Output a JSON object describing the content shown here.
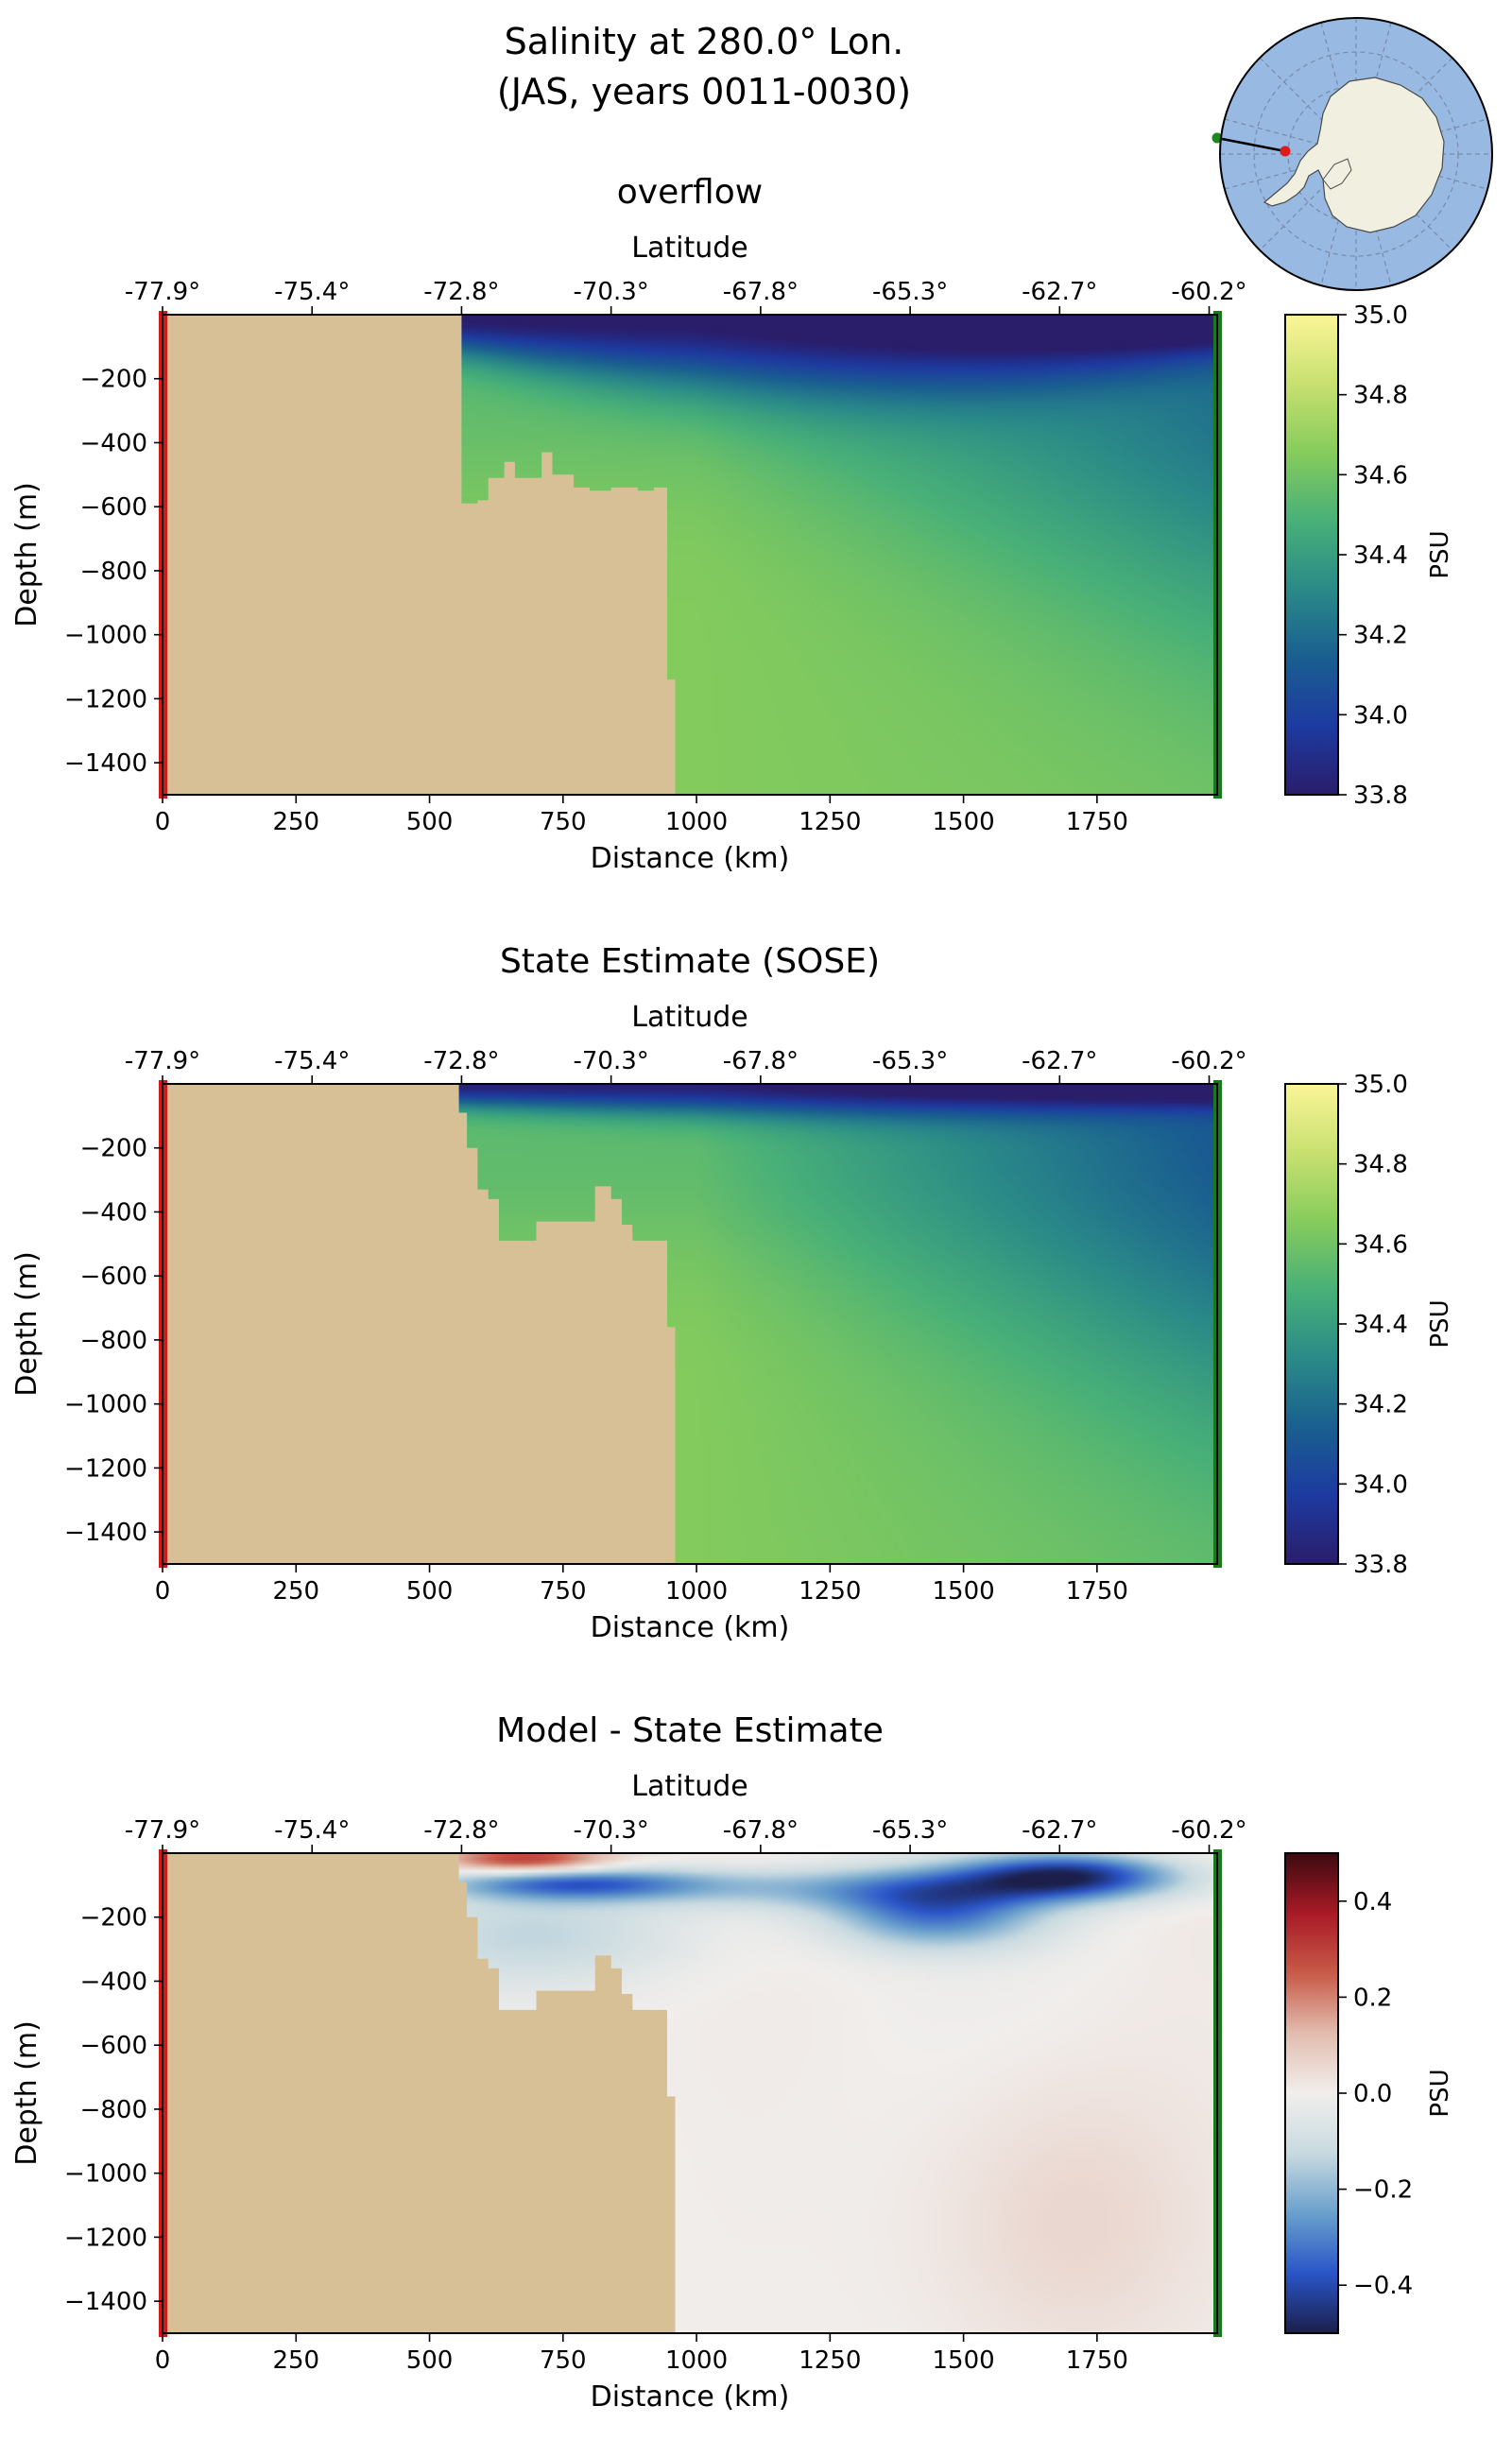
{
  "figure": {
    "title_line1": "Salinity at 280.0° Lon.",
    "title_line2": "(JAS, years 0011-0030)"
  },
  "colors": {
    "land": "#d8c096",
    "start_marker": "#d11a1a",
    "end_marker": "#1a7a1a",
    "map_ocean": "#98b9e2",
    "map_land": "#f0efe0",
    "map_grid": "#7a8aa8"
  },
  "inset_map": {
    "projection": "south-polar-stereographic",
    "start_point_color": "#d11a1a",
    "end_point_color": "#1a7a1a"
  },
  "chart_data": [
    {
      "type": "heatmap",
      "title": "overflow",
      "top_axis_label": "Latitude",
      "top_ticks": [
        "-77.9°",
        "-75.4°",
        "-72.8°",
        "-70.3°",
        "-67.8°",
        "-65.3°",
        "-62.7°",
        "-60.2°"
      ],
      "top_tick_positions_km": [
        0,
        280,
        560,
        840,
        1120,
        1400,
        1680,
        1960
      ],
      "xlabel": "Distance (km)",
      "ylabel": "Depth (m)",
      "x_ticks": [
        0,
        250,
        500,
        750,
        1000,
        1250,
        1500,
        1750
      ],
      "y_ticks": [
        -200,
        -400,
        -600,
        -800,
        -1000,
        -1200,
        -1400
      ],
      "y_tick_labels": [
        "−200",
        "−400",
        "−600",
        "−800",
        "−1000",
        "−1200",
        "−1400"
      ],
      "xlim": [
        0,
        1975
      ],
      "ylim": [
        -1500,
        0
      ],
      "colormap": "haline",
      "colorbar": {
        "label": "PSU",
        "range": [
          33.8,
          35.0
        ],
        "ticks": [
          33.8,
          34.0,
          34.2,
          34.4,
          34.6,
          34.8,
          35.0
        ],
        "tick_labels": [
          "33.8",
          "34.0",
          "34.2",
          "34.4",
          "34.6",
          "34.8",
          "35.0"
        ],
        "stops": [
          "#2a1d6a",
          "#1d3aa0",
          "#1a5f90",
          "#2a8a88",
          "#48b078",
          "#86cc5c",
          "#c8e070",
          "#fbf598"
        ]
      },
      "bathymetry_km_m": [
        [
          0,
          0
        ],
        [
          560,
          0
        ],
        [
          560,
          -590
        ],
        [
          590,
          -590
        ],
        [
          590,
          -580
        ],
        [
          610,
          -580
        ],
        [
          610,
          -510
        ],
        [
          640,
          -510
        ],
        [
          640,
          -460
        ],
        [
          660,
          -460
        ],
        [
          660,
          -510
        ],
        [
          710,
          -510
        ],
        [
          710,
          -430
        ],
        [
          730,
          -430
        ],
        [
          730,
          -500
        ],
        [
          770,
          -500
        ],
        [
          770,
          -540
        ],
        [
          800,
          -540
        ],
        [
          800,
          -550
        ],
        [
          840,
          -550
        ],
        [
          840,
          -540
        ],
        [
          890,
          -540
        ],
        [
          890,
          -550
        ],
        [
          920,
          -550
        ],
        [
          920,
          -540
        ],
        [
          945,
          -540
        ],
        [
          945,
          -1140
        ],
        [
          960,
          -1140
        ],
        [
          960,
          -1500
        ],
        [
          0,
          -1500
        ]
      ],
      "surface_fresh_layer_m": 120,
      "surface_salinity_psu": 33.85,
      "deep_salinity_psu": 34.65,
      "offshore_deep_salinity_psu": 34.55
    },
    {
      "type": "heatmap",
      "title": "State Estimate (SOSE)",
      "top_axis_label": "Latitude",
      "top_ticks": [
        "-77.9°",
        "-75.4°",
        "-72.8°",
        "-70.3°",
        "-67.8°",
        "-65.3°",
        "-62.7°",
        "-60.2°"
      ],
      "top_tick_positions_km": [
        0,
        280,
        560,
        840,
        1120,
        1400,
        1680,
        1960
      ],
      "xlabel": "Distance (km)",
      "ylabel": "Depth (m)",
      "x_ticks": [
        0,
        250,
        500,
        750,
        1000,
        1250,
        1500,
        1750
      ],
      "y_ticks": [
        -200,
        -400,
        -600,
        -800,
        -1000,
        -1200,
        -1400
      ],
      "y_tick_labels": [
        "−200",
        "−400",
        "−600",
        "−800",
        "−1000",
        "−1200",
        "−1400"
      ],
      "xlim": [
        0,
        1975
      ],
      "ylim": [
        -1500,
        0
      ],
      "colormap": "haline",
      "colorbar": {
        "label": "PSU",
        "range": [
          33.8,
          35.0
        ],
        "ticks": [
          33.8,
          34.0,
          34.2,
          34.4,
          34.6,
          34.8,
          35.0
        ],
        "tick_labels": [
          "33.8",
          "34.0",
          "34.2",
          "34.4",
          "34.6",
          "34.8",
          "35.0"
        ],
        "stops": [
          "#2a1d6a",
          "#1d3aa0",
          "#1a5f90",
          "#2a8a88",
          "#48b078",
          "#86cc5c",
          "#c8e070",
          "#fbf598"
        ]
      },
      "bathymetry_km_m": [
        [
          0,
          0
        ],
        [
          555,
          0
        ],
        [
          555,
          -90
        ],
        [
          570,
          -90
        ],
        [
          570,
          -200
        ],
        [
          590,
          -200
        ],
        [
          590,
          -330
        ],
        [
          610,
          -330
        ],
        [
          610,
          -360
        ],
        [
          630,
          -360
        ],
        [
          630,
          -490
        ],
        [
          700,
          -490
        ],
        [
          700,
          -430
        ],
        [
          810,
          -430
        ],
        [
          810,
          -320
        ],
        [
          840,
          -320
        ],
        [
          840,
          -360
        ],
        [
          860,
          -360
        ],
        [
          860,
          -440
        ],
        [
          880,
          -440
        ],
        [
          880,
          -490
        ],
        [
          945,
          -490
        ],
        [
          945,
          -760
        ],
        [
          960,
          -760
        ],
        [
          960,
          -1500
        ],
        [
          0,
          -1500
        ]
      ],
      "surface_fresh_layer_m": 70,
      "surface_salinity_psu": 33.9,
      "deep_salinity_psu": 34.65,
      "offshore_deep_salinity_psu": 34.45
    },
    {
      "type": "heatmap",
      "title": "Model - State Estimate",
      "top_axis_label": "Latitude",
      "top_ticks": [
        "-77.9°",
        "-75.4°",
        "-72.8°",
        "-70.3°",
        "-67.8°",
        "-65.3°",
        "-62.7°",
        "-60.2°"
      ],
      "top_tick_positions_km": [
        0,
        280,
        560,
        840,
        1120,
        1400,
        1680,
        1960
      ],
      "xlabel": "Distance (km)",
      "ylabel": "Depth (m)",
      "x_ticks": [
        0,
        250,
        500,
        750,
        1000,
        1250,
        1500,
        1750
      ],
      "y_ticks": [
        -200,
        -400,
        -600,
        -800,
        -1000,
        -1200,
        -1400
      ],
      "y_tick_labels": [
        "−200",
        "−400",
        "−600",
        "−800",
        "−1000",
        "−1200",
        "−1400"
      ],
      "xlim": [
        0,
        1975
      ],
      "ylim": [
        -1500,
        0
      ],
      "colormap": "balance",
      "colorbar": {
        "label": "PSU",
        "range": [
          -0.5,
          0.5
        ],
        "ticks": [
          -0.4,
          -0.2,
          0.0,
          0.2,
          0.4
        ],
        "tick_labels": [
          "−0.4",
          "−0.2",
          "0.0",
          "0.2",
          "0.4"
        ],
        "stops": [
          "#1b1f4a",
          "#2a55c8",
          "#6aa0cc",
          "#c8dae0",
          "#f1eeec",
          "#e2bcae",
          "#c85a48",
          "#a81a26",
          "#3c0a10"
        ]
      },
      "bathymetry_km_m": [
        [
          0,
          0
        ],
        [
          555,
          0
        ],
        [
          555,
          -90
        ],
        [
          570,
          -90
        ],
        [
          570,
          -200
        ],
        [
          590,
          -200
        ],
        [
          590,
          -330
        ],
        [
          610,
          -330
        ],
        [
          610,
          -360
        ],
        [
          630,
          -360
        ],
        [
          630,
          -490
        ],
        [
          700,
          -490
        ],
        [
          700,
          -430
        ],
        [
          810,
          -430
        ],
        [
          810,
          -320
        ],
        [
          840,
          -320
        ],
        [
          840,
          -360
        ],
        [
          860,
          -360
        ],
        [
          860,
          -440
        ],
        [
          880,
          -440
        ],
        [
          880,
          -490
        ],
        [
          945,
          -490
        ],
        [
          945,
          -760
        ],
        [
          960,
          -760
        ],
        [
          960,
          -1500
        ],
        [
          0,
          -1500
        ]
      ],
      "anomaly_features": [
        {
          "x_km": 680,
          "depth_m": 20,
          "value_psu": 0.35,
          "width_km": 160,
          "height_m": 45
        },
        {
          "x_km": 770,
          "depth_m": 95,
          "value_psu": -0.3,
          "width_km": 240,
          "height_m": 50
        },
        {
          "x_km": 1700,
          "depth_m": 70,
          "value_psu": -0.42,
          "width_km": 200,
          "height_m": 70
        },
        {
          "x_km": 1450,
          "depth_m": 190,
          "value_psu": -0.3,
          "width_km": 200,
          "height_m": 110
        },
        {
          "x_km": 1300,
          "depth_m": 110,
          "value_psu": -0.2,
          "width_km": 450,
          "height_m": 70
        },
        {
          "x_km": 700,
          "depth_m": 260,
          "value_psu": -0.12,
          "width_km": 300,
          "height_m": 150
        },
        {
          "x_km": 1700,
          "depth_m": 1150,
          "value_psu": 0.06,
          "width_km": 250,
          "height_m": 450
        }
      ]
    }
  ]
}
